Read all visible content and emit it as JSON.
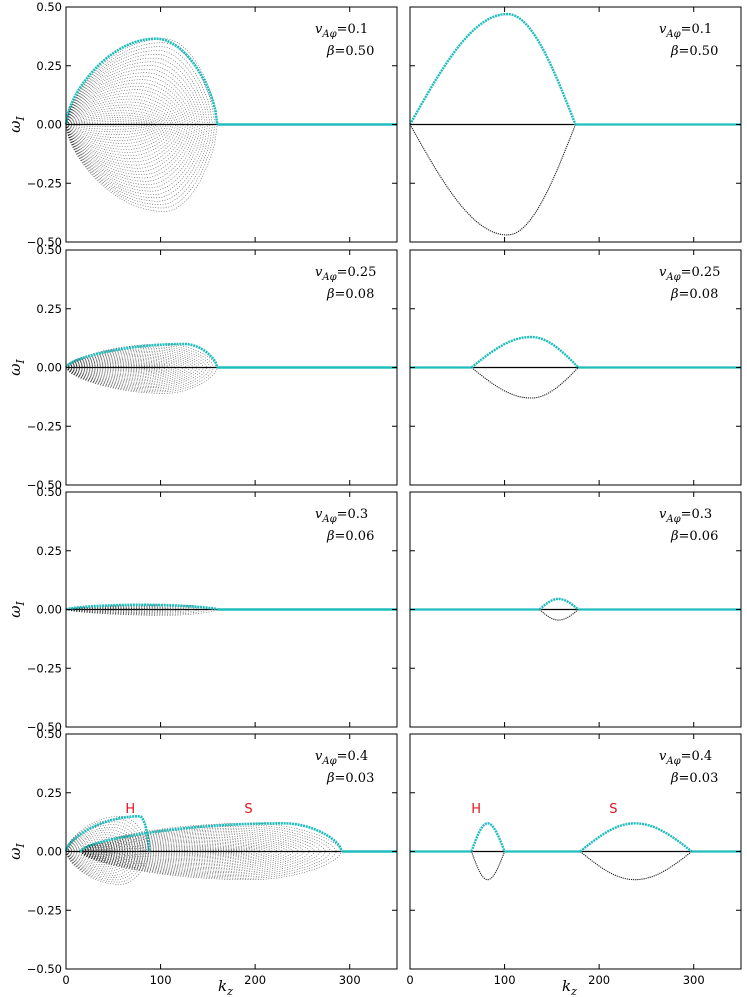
{
  "figure": {
    "xlabel": "k_z",
    "ylabel": "ω_I",
    "xlabel_html": [
      "k",
      "z"
    ],
    "ylabel_html": [
      "ω",
      "I"
    ]
  },
  "colors": {
    "growth": "#1fbdbd",
    "damped": "#222222",
    "baseline": "#000000",
    "mode_label": "#e0141b"
  },
  "chart_data": [
    {
      "type": "scatter",
      "panel": "row1-left",
      "title_line1": "v_{Aφ}=0.1",
      "title_line2": "β=0.50",
      "vA": "0.1",
      "beta": "0.50",
      "xlim": [
        0,
        350
      ],
      "ylim": [
        -0.5,
        0.5
      ],
      "xticks": [
        "0",
        "100",
        "200",
        "300"
      ],
      "yticks": [
        "0.50",
        "0.25",
        "0.00",
        "−0.25",
        "−0.50"
      ],
      "family": {
        "n": 28,
        "k_max": 160,
        "peak_growth": 0.365,
        "peak_k": 95,
        "min_damped": -0.37
      },
      "labels": []
    },
    {
      "type": "scatter",
      "panel": "row1-right",
      "title_line1": "v_{Aφ}=0.1",
      "title_line2": "β=0.50",
      "vA": "0.1",
      "beta": "0.50",
      "xlim": [
        0,
        350
      ],
      "ylim": [
        -0.5,
        0.5
      ],
      "xticks": [
        "0",
        "100",
        "200",
        "300"
      ],
      "yticks": [],
      "branches": [
        {
          "k_start": 0,
          "k_end": 175,
          "peak_k": 103,
          "peak": 0.47
        }
      ],
      "labels": []
    },
    {
      "type": "scatter",
      "panel": "row2-left",
      "title_line1": "v_{Aφ}=0.25",
      "title_line2": "β=0.08",
      "vA": "0.25",
      "beta": "0.08",
      "xlim": [
        0,
        350
      ],
      "ylim": [
        -0.5,
        0.5
      ],
      "xticks": [
        "0",
        "100",
        "200",
        "300"
      ],
      "yticks": [
        "0.50",
        "0.25",
        "0.00",
        "−0.25",
        "−0.50"
      ],
      "family": {
        "n": 20,
        "k_max": 160,
        "peak_growth": 0.1,
        "peak_k": 125,
        "min_damped": -0.11
      },
      "labels": []
    },
    {
      "type": "scatter",
      "panel": "row2-right",
      "title_line1": "v_{Aφ}=0.25",
      "title_line2": "β=0.08",
      "vA": "0.25",
      "beta": "0.08",
      "xlim": [
        0,
        350
      ],
      "ylim": [
        -0.5,
        0.5
      ],
      "xticks": [
        "0",
        "100",
        "200",
        "300"
      ],
      "yticks": [],
      "branches": [
        {
          "k_start": 65,
          "k_end": 178,
          "peak_k": 128,
          "peak": 0.13
        }
      ],
      "labels": []
    },
    {
      "type": "scatter",
      "panel": "row3-left",
      "title_line1": "v_{Aφ}=0.3",
      "title_line2": "β=0.06",
      "vA": "0.3",
      "beta": "0.06",
      "xlim": [
        0,
        350
      ],
      "ylim": [
        -0.5,
        0.5
      ],
      "xticks": [
        "0",
        "100",
        "200",
        "300"
      ],
      "yticks": [
        "0.50",
        "0.25",
        "0.00",
        "−0.25",
        "−0.50"
      ],
      "family": {
        "n": 8,
        "k_max": 160,
        "peak_growth": 0.02,
        "peak_k": 80,
        "min_damped": -0.025
      },
      "labels": []
    },
    {
      "type": "scatter",
      "panel": "row3-right",
      "title_line1": "v_{Aφ}=0.3",
      "title_line2": "β=0.06",
      "vA": "0.3",
      "beta": "0.06",
      "xlim": [
        0,
        350
      ],
      "ylim": [
        -0.5,
        0.5
      ],
      "xticks": [
        "0",
        "100",
        "200",
        "300"
      ],
      "yticks": [],
      "branches": [
        {
          "k_start": 137,
          "k_end": 178,
          "peak_k": 157,
          "peak": 0.045
        }
      ],
      "labels": []
    },
    {
      "type": "scatter",
      "panel": "row4-left",
      "title_line1": "v_{Aφ}=0.4",
      "title_line2": "β=0.03",
      "vA": "0.4",
      "beta": "0.03",
      "xlim": [
        0,
        350
      ],
      "ylim": [
        -0.5,
        0.5
      ],
      "xticks": [
        "0",
        "100",
        "200",
        "300"
      ],
      "yticks": [
        "0.50",
        "0.25",
        "0.00",
        "−0.25",
        "−0.50"
      ],
      "family_h": {
        "n": 16,
        "k_max": 88,
        "peak_growth": 0.15,
        "peak_k": 78,
        "min_damped": -0.14
      },
      "family_s": {
        "n": 22,
        "k_min": 15,
        "k_max": 292,
        "peak_growth": 0.12,
        "peak_k": 230,
        "min_damped": -0.12
      },
      "labels": [
        {
          "text": "H",
          "k": 68,
          "w": 0.18
        },
        {
          "text": "S",
          "k": 193,
          "w": 0.18
        }
      ]
    },
    {
      "type": "scatter",
      "panel": "row4-right",
      "title_line1": "v_{Aφ}=0.4",
      "title_line2": "β=0.03",
      "vA": "0.4",
      "beta": "0.03",
      "xlim": [
        0,
        350
      ],
      "ylim": [
        -0.5,
        0.5
      ],
      "xticks": [
        "0",
        "100",
        "200",
        "300"
      ],
      "yticks": [],
      "branches": [
        {
          "k_start": 65,
          "k_end": 100,
          "peak_k": 82,
          "peak": 0.12
        },
        {
          "k_start": 180,
          "k_end": 298,
          "peak_k": 238,
          "peak": 0.12
        }
      ],
      "labels": [
        {
          "text": "H",
          "k": 70,
          "w": 0.18
        },
        {
          "text": "S",
          "k": 215,
          "w": 0.18
        }
      ]
    }
  ]
}
